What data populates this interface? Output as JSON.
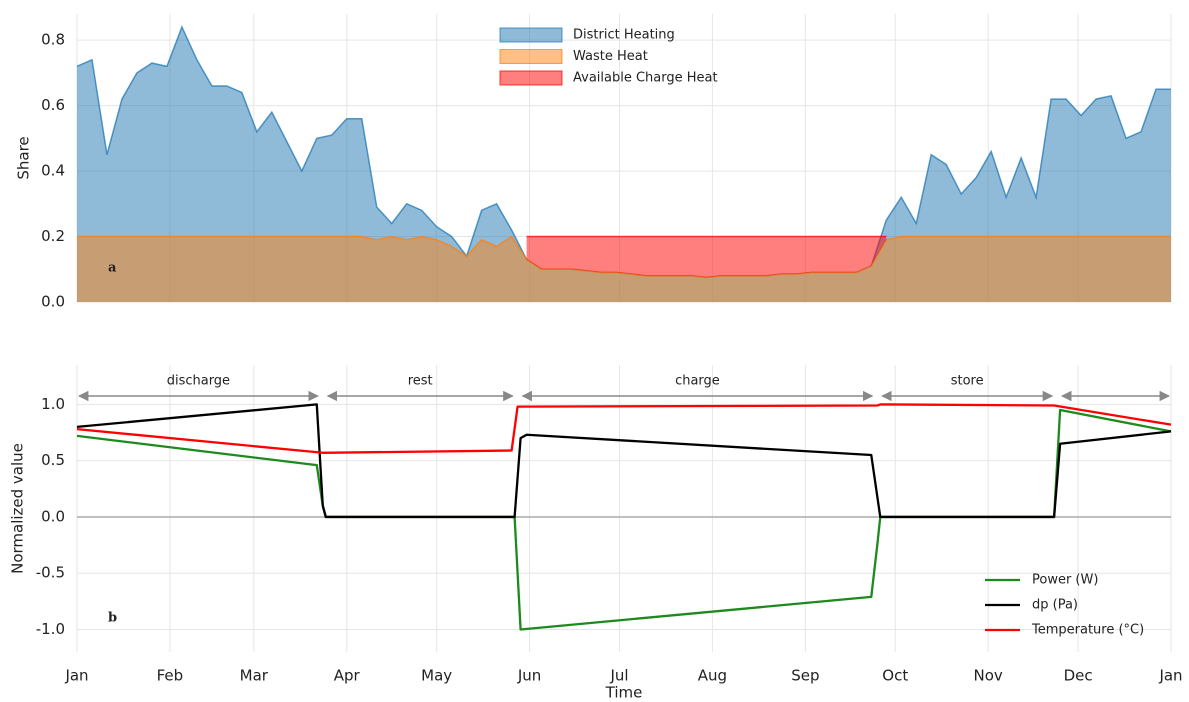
{
  "chart_data": [
    {
      "type": "area",
      "label": "a",
      "ylabel": "Share",
      "x": [
        0,
        5,
        10,
        15,
        20,
        25,
        30,
        35,
        40,
        45,
        50,
        55,
        60,
        65,
        70,
        75,
        80,
        85,
        90,
        95,
        100,
        105,
        110,
        115,
        120,
        125,
        130,
        135,
        140,
        145,
        150,
        155,
        160,
        165,
        170,
        175,
        180,
        185,
        190,
        195,
        200,
        205,
        210,
        215,
        220,
        225,
        230,
        235,
        240,
        245,
        250,
        255,
        260,
        265,
        270,
        275,
        280,
        285,
        290,
        295,
        300,
        305,
        310,
        315,
        320,
        325,
        330,
        335,
        340,
        345,
        350,
        355,
        360,
        365
      ],
      "series": [
        {
          "name": "District Heating",
          "color": "#1f77b4",
          "values": [
            0.72,
            0.74,
            0.45,
            0.62,
            0.7,
            0.73,
            0.72,
            0.84,
            0.74,
            0.66,
            0.66,
            0.64,
            0.52,
            0.58,
            0.49,
            0.4,
            0.5,
            0.51,
            0.56,
            0.56,
            0.29,
            0.24,
            0.3,
            0.28,
            0.23,
            0.2,
            0.14,
            0.28,
            0.3,
            0.22,
            0.13,
            0.1,
            0.1,
            0.1,
            0.095,
            0.09,
            0.09,
            0.085,
            0.08,
            0.08,
            0.08,
            0.08,
            0.075,
            0.08,
            0.08,
            0.08,
            0.08,
            0.085,
            0.085,
            0.09,
            0.09,
            0.09,
            0.09,
            0.11,
            0.25,
            0.32,
            0.24,
            0.45,
            0.42,
            0.33,
            0.38,
            0.46,
            0.32,
            0.44,
            0.32,
            0.62,
            0.62,
            0.57,
            0.62,
            0.63,
            0.5,
            0.52,
            0.65,
            0.65
          ]
        },
        {
          "name": "Waste Heat",
          "color": "#ff7f0e",
          "values": [
            0.2,
            0.2,
            0.2,
            0.2,
            0.2,
            0.2,
            0.2,
            0.2,
            0.2,
            0.2,
            0.2,
            0.2,
            0.2,
            0.2,
            0.2,
            0.2,
            0.2,
            0.2,
            0.2,
            0.2,
            0.19,
            0.2,
            0.19,
            0.2,
            0.19,
            0.17,
            0.14,
            0.19,
            0.17,
            0.2,
            0.13,
            0.1,
            0.1,
            0.1,
            0.095,
            0.09,
            0.09,
            0.085,
            0.08,
            0.08,
            0.08,
            0.08,
            0.075,
            0.08,
            0.08,
            0.08,
            0.08,
            0.085,
            0.085,
            0.09,
            0.09,
            0.09,
            0.09,
            0.11,
            0.19,
            0.2,
            0.2,
            0.2,
            0.2,
            0.2,
            0.2,
            0.2,
            0.2,
            0.2,
            0.2,
            0.2,
            0.2,
            0.2,
            0.2,
            0.2,
            0.2,
            0.2,
            0.2,
            0.2
          ]
        },
        {
          "name": "Available Charge Heat",
          "color": "#ff0000",
          "values": [
            null,
            null,
            null,
            null,
            null,
            null,
            null,
            null,
            null,
            null,
            null,
            null,
            null,
            null,
            null,
            null,
            null,
            null,
            null,
            null,
            null,
            null,
            null,
            null,
            null,
            null,
            null,
            null,
            null,
            null,
            0.07,
            0.1,
            0.1,
            0.1,
            0.105,
            0.11,
            0.11,
            0.115,
            0.12,
            0.12,
            0.12,
            0.12,
            0.125,
            0.12,
            0.12,
            0.12,
            0.12,
            0.115,
            0.115,
            0.11,
            0.11,
            0.11,
            0.11,
            0.09,
            0.01,
            null,
            null,
            null,
            null,
            null,
            null,
            null,
            null,
            null,
            null,
            null,
            null,
            null,
            null,
            null,
            null,
            null,
            null,
            null
          ]
        }
      ],
      "xlim": [
        0,
        365
      ],
      "ylim": [
        0,
        0.88
      ],
      "yticks": [
        {
          "value": 0,
          "label": "0.0"
        },
        0.2,
        0.4,
        0.6,
        0.8
      ],
      "grid": true,
      "legend": "top"
    },
    {
      "type": "line",
      "label": "b",
      "xlabel": "Time",
      "ylabel": "Normalized value",
      "series": [
        {
          "name": "Power (W)",
          "color": "#1e8a1e",
          "x": [
            0,
            80,
            82,
            83,
            146,
            148,
            265,
            267,
            268,
            326,
            328,
            365
          ],
          "values": [
            0.72,
            0.46,
            0.1,
            0,
            0,
            -1.0,
            -0.71,
            -0.25,
            0,
            0,
            0.95,
            0.76
          ]
        },
        {
          "name": "dp (Pa)",
          "color": "#000000",
          "x": [
            0,
            80,
            82,
            83,
            146,
            148,
            150,
            265,
            268,
            326,
            328,
            365
          ],
          "values": [
            0.8,
            1.0,
            0.1,
            0,
            0,
            0.7,
            0.73,
            0.55,
            0,
            0,
            0.65,
            0.76
          ]
        },
        {
          "name": "Temperature (°C)",
          "color": "#ff0000",
          "x": [
            0,
            82,
            145,
            147,
            267,
            268,
            326,
            365
          ],
          "values": [
            0.78,
            0.57,
            0.59,
            0.98,
            0.99,
            1.0,
            0.99,
            0.82
          ]
        }
      ],
      "phases": [
        {
          "label": "discharge",
          "x": [
            0,
            81
          ]
        },
        {
          "label": "rest",
          "x": [
            83,
            146
          ]
        },
        {
          "label": "charge",
          "x": [
            148,
            266
          ]
        },
        {
          "label": "store",
          "x": [
            268,
            326
          ]
        },
        {
          "label": null,
          "x": [
            328,
            365
          ]
        }
      ],
      "xlim": [
        0,
        365
      ],
      "ylim": [
        -1.2,
        1.35
      ],
      "xticks": [
        {
          "value": 0,
          "label": "Jan"
        },
        {
          "value": 31,
          "label": "Feb"
        },
        {
          "value": 59,
          "label": "Mar"
        },
        {
          "value": 90,
          "label": "Apr"
        },
        {
          "value": 120,
          "label": "May"
        },
        {
          "value": 151,
          "label": "Jun"
        },
        {
          "value": 181,
          "label": "Jul"
        },
        {
          "value": 212,
          "label": "Aug"
        },
        {
          "value": 243,
          "label": "Sep"
        },
        {
          "value": 273,
          "label": "Oct"
        },
        {
          "value": 304,
          "label": "Nov"
        },
        {
          "value": 334,
          "label": "Dec"
        },
        {
          "value": 365,
          "label": "Jan"
        }
      ],
      "yticks": [
        {
          "value": -1,
          "label": "-1.0"
        },
        -0.5,
        {
          "value": 0,
          "label": "0.0"
        },
        0.5,
        {
          "value": 1,
          "label": "1.0"
        }
      ],
      "grid": true,
      "legend": "lower right"
    }
  ]
}
